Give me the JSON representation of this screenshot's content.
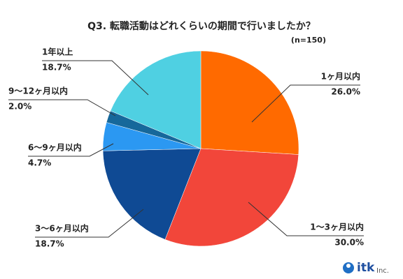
{
  "chart_data": {
    "type": "pie",
    "title": "Q3. 転職活動はどれくらいの期間で行いましたか？",
    "subtitle": "(n=150)",
    "categories": [
      "1ヶ月以内",
      "1〜3ヶ月以内",
      "3〜6ヶ月以内",
      "6〜9ヶ月以内",
      "9〜12ヶ月以内",
      "1年以上"
    ],
    "values": [
      26.0,
      30.0,
      18.7,
      4.7,
      2.0,
      18.7
    ],
    "value_labels": [
      "26.0%",
      "30.0%",
      "18.7%",
      "4.7%",
      "2.0%",
      "18.7%"
    ],
    "colors": [
      "#ff6a00",
      "#f2463a",
      "#0f4a94",
      "#2b98f2",
      "#16689b",
      "#4fd0e2"
    ]
  },
  "logo": {
    "name": "itk",
    "suffix": "Inc."
  }
}
